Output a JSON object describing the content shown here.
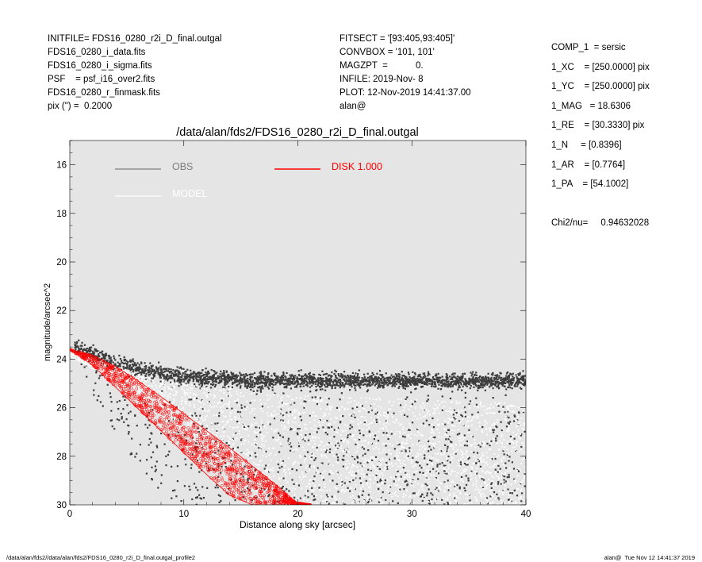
{
  "header_left": [
    "INITFILE= FDS16_0280_r2i_D_final.outgal",
    "FDS16_0280_i_data.fits",
    "FDS16_0280_i_sigma.fits",
    "PSF    = psf_i16_over2.fits",
    "FDS16_0280_r_finmask.fits",
    "pix (\") =  0.2000"
  ],
  "header_mid": [
    "FITSECT = '[93:405,93:405]'",
    "CONVBOX = '101, 101'",
    "MAGZPT  =           0.",
    "INFILE: 2019-Nov- 8",
    "PLOT: 12-Nov-2019 14:41:37.00",
    "alan@"
  ],
  "header_right": [
    "COMP_1  = sersic",
    "1_XC    = [250.0000] pix",
    "1_YC    = [250.0000] pix",
    "1_MAG   = 18.6306",
    "1_RE    = [30.3330] pix",
    "1_N     = [0.8396]",
    "1_AR    = [0.7764]",
    "1_PA    = [54.1002]",
    "",
    "Chi2/nu=     0.94632028"
  ],
  "footer": {
    "left": "/data/alan/fds2//data/alan/fds2/FDS16_0280_r2i_D_final.outgal_profile2",
    "right": "alan@  Tue Nov 12 14:41:37 2019"
  },
  "colors": {
    "plot_bg": "#e5e5e5",
    "obs": "#3c3c3c",
    "obs_legend": "#7f7f7f",
    "model": "#ffffff",
    "disk": "#ff0000"
  },
  "chart_data": {
    "type": "scatter",
    "title": "/data/alan/fds2/FDS16_0280_r2i_D_final.outgal",
    "xlabel": "Distance along sky [arcsec]",
    "ylabel": "magnitude/arcsec^2",
    "xlim": [
      0,
      40
    ],
    "ylim": [
      30,
      15
    ],
    "y_inverted": true,
    "x_ticks": [
      0,
      10,
      20,
      30,
      40
    ],
    "y_ticks": [
      16,
      18,
      20,
      22,
      24,
      26,
      28,
      30
    ],
    "grid": false,
    "legend": [
      {
        "label": "OBS",
        "color": "#7f7f7f"
      },
      {
        "label": "MODEL",
        "color": "#ffffff"
      },
      {
        "label": "DISK  1.000",
        "color": "#ff0000"
      }
    ],
    "series": [
      {
        "name": "OBS",
        "kind": "points",
        "color": "#3c3c3c",
        "x": [
          0.5,
          1,
          1.5,
          2,
          3,
          4,
          5,
          6,
          8,
          10,
          12,
          14,
          16,
          18,
          20,
          22,
          25,
          28,
          31,
          34,
          37,
          40
        ],
        "y": [
          23.5,
          23.6,
          23.7,
          23.8,
          24.0,
          24.2,
          24.3,
          24.4,
          24.6,
          24.7,
          24.8,
          24.8,
          24.9,
          24.9,
          24.9,
          24.9,
          24.9,
          24.9,
          24.9,
          24.9,
          24.9,
          24.9
        ],
        "lower_envelope": [
          23.8,
          24.2,
          24.8,
          25.4,
          26.2,
          27.0,
          27.7,
          28.4,
          29.5,
          30.0,
          30.0,
          30.0,
          30.0,
          30.0,
          30.0,
          30.0,
          30.0,
          30.0,
          30.0,
          30.0,
          30.0,
          30.0
        ]
      },
      {
        "name": "MODEL",
        "kind": "points",
        "color": "#ffffff",
        "x": [
          0,
          2,
          4,
          6,
          8,
          10,
          12,
          14,
          16,
          18,
          20,
          22,
          25,
          28,
          31,
          34,
          37,
          40
        ],
        "y_min": [
          23.7,
          24.0,
          24.3,
          24.6,
          24.8,
          25.0,
          25.1,
          25.2,
          25.3,
          25.4,
          25.5,
          25.5,
          25.6,
          25.6,
          25.7,
          25.7,
          25.8,
          25.8
        ],
        "y_max": [
          23.9,
          24.4,
          24.9,
          25.5,
          26.2,
          27.0,
          27.8,
          28.6,
          29.4,
          30.0,
          30.0,
          30.0,
          30.0,
          30.0,
          30.0,
          30.0,
          30.0,
          30.0
        ]
      },
      {
        "name": "DISK  1.000",
        "kind": "band",
        "color": "#ff0000",
        "x": [
          0,
          2,
          4,
          6,
          8,
          10,
          12,
          14,
          16,
          18,
          19.8,
          21.1
        ],
        "y_upper": [
          23.6,
          23.85,
          24.3,
          24.9,
          25.55,
          26.25,
          26.95,
          27.65,
          28.4,
          29.15,
          29.9,
          30.0
        ],
        "y_lower": [
          23.6,
          24.25,
          25.15,
          26.05,
          26.95,
          27.85,
          28.75,
          29.6,
          30.0,
          30.0,
          30.0,
          30.0
        ]
      }
    ]
  }
}
